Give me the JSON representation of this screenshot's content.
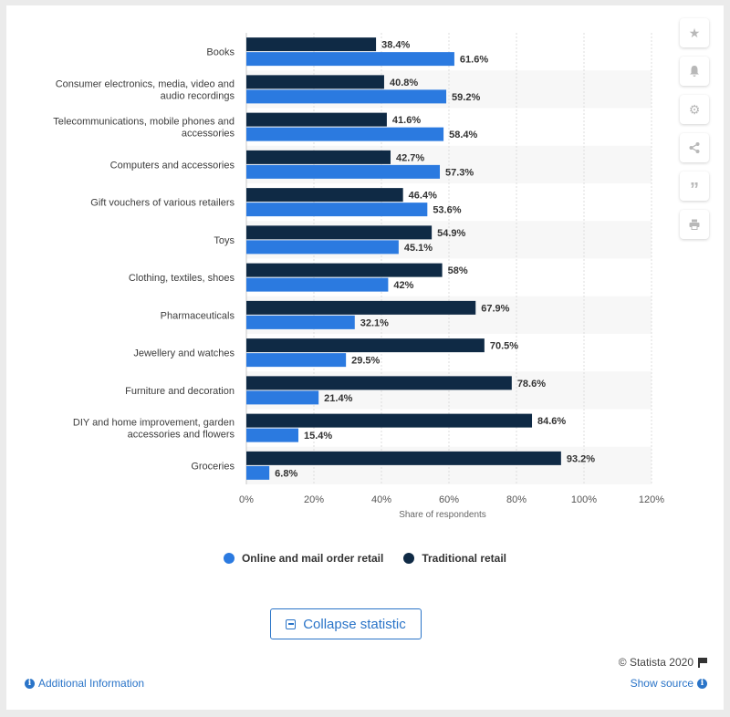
{
  "chart_data": {
    "type": "bar",
    "orientation": "horizontal",
    "categories": [
      [
        "Books"
      ],
      [
        "Consumer electronics, media, video and",
        "audio recordings"
      ],
      [
        "Telecommunications, mobile phones and",
        "accessories"
      ],
      [
        "Computers and accessories"
      ],
      [
        "Gift vouchers of various retailers"
      ],
      [
        "Toys"
      ],
      [
        "Clothing, textiles, shoes"
      ],
      [
        "Pharmaceuticals"
      ],
      [
        "Jewellery and watches"
      ],
      [
        "Furniture and decoration"
      ],
      [
        "DIY and home improvement, garden",
        "accessories and flowers"
      ],
      [
        "Groceries"
      ]
    ],
    "series": [
      {
        "name": "Traditional retail",
        "color": "#0f2a45",
        "values": [
          38.4,
          40.8,
          41.6,
          42.7,
          46.4,
          54.9,
          58,
          67.9,
          70.5,
          78.6,
          84.6,
          93.2
        ],
        "labels": [
          "38.4%",
          "40.8%",
          "41.6%",
          "42.7%",
          "46.4%",
          "54.9%",
          "58%",
          "67.9%",
          "70.5%",
          "78.6%",
          "84.6%",
          "93.2%"
        ]
      },
      {
        "name": "Online and mail order retail",
        "color": "#2b7ae0",
        "values": [
          61.6,
          59.2,
          58.4,
          57.3,
          53.6,
          45.1,
          42,
          32.1,
          29.5,
          21.4,
          15.4,
          6.8
        ],
        "labels": [
          "61.6%",
          "59.2%",
          "58.4%",
          "57.3%",
          "53.6%",
          "45.1%",
          "42%",
          "32.1%",
          "29.5%",
          "21.4%",
          "15.4%",
          "6.8%"
        ]
      }
    ],
    "xlabel": "Share of respondents",
    "xlim": [
      0,
      120
    ],
    "xticks": [
      0,
      20,
      40,
      60,
      80,
      100,
      120
    ],
    "xtick_labels": [
      "0%",
      "20%",
      "40%",
      "60%",
      "80%",
      "100%",
      "120%"
    ],
    "grid": true,
    "legend_placement": "bottom-center"
  },
  "legend": {
    "online_label": "Online and mail order retail",
    "traditional_label": "Traditional retail",
    "online_color": "#2b7ae0",
    "traditional_color": "#0f2a45"
  },
  "sidebar": {
    "icons": [
      "star-icon",
      "bell-icon",
      "gear-icon",
      "share-icon",
      "quote-icon",
      "print-icon"
    ]
  },
  "collapse_label": "Collapse statistic",
  "credit": "© Statista 2020",
  "additional_info": "Additional Information",
  "show_source": "Show source"
}
